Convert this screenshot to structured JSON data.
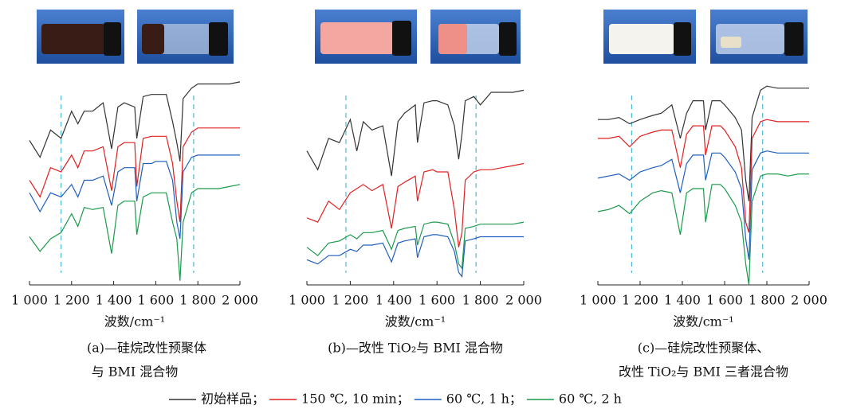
{
  "chart_data": [
    {
      "type": "line",
      "x": [
        1000,
        1050,
        1100,
        1150,
        1200,
        1230,
        1260,
        1300,
        1350,
        1390,
        1420,
        1450,
        1500,
        1510,
        1540,
        1580,
        1600,
        1650,
        1680,
        1700,
        1715,
        1730,
        1770,
        1800,
        1850,
        1900,
        1950,
        2000
      ],
      "series": [
        {
          "name": "初始样品",
          "color": "#333333",
          "values": [
            69,
            61,
            74,
            70,
            83,
            77,
            83,
            83,
            87,
            65,
            85,
            87,
            85,
            70,
            90,
            91,
            91,
            91,
            78,
            68,
            59,
            89,
            94,
            96,
            96,
            96,
            96,
            97
          ]
        },
        {
          "name": "150 ℃, 10 min",
          "color": "#e02020",
          "values": [
            50,
            42,
            56,
            54,
            62,
            56,
            64,
            64,
            66,
            45,
            66,
            68,
            68,
            47,
            70,
            71,
            71,
            71,
            58,
            40,
            30,
            66,
            73,
            75,
            75,
            75,
            75,
            75
          ]
        },
        {
          "name": "60 ℃, 1 h",
          "color": "#1f5fbf",
          "values": [
            44,
            35,
            44,
            42,
            48,
            42,
            50,
            50,
            52,
            38,
            54,
            56,
            56,
            40,
            58,
            58,
            59,
            59,
            50,
            30,
            22,
            54,
            61,
            62,
            62,
            62,
            62,
            62
          ]
        },
        {
          "name": "60 ℃, 2 h",
          "color": "#1a9a4a",
          "values": [
            23,
            16,
            22,
            25,
            34,
            28,
            37,
            36,
            37,
            15,
            38,
            40,
            40,
            24,
            42,
            44,
            44,
            44,
            30,
            22,
            2,
            30,
            44,
            46,
            46,
            46,
            47,
            48
          ]
        }
      ],
      "xlim": [
        1000,
        2000
      ],
      "ylim": [
        0,
        100
      ],
      "xticks": [
        {
          "value": 1000,
          "label": "1 000"
        },
        {
          "value": 1200,
          "label": "1 200"
        },
        {
          "value": 1400,
          "label": "1 400"
        },
        {
          "value": 1600,
          "label": "1 600"
        },
        {
          "value": 1800,
          "label": "1 800"
        },
        {
          "value": 2000,
          "label": "2 000"
        }
      ],
      "reference_lines": [
        1150,
        1780
      ],
      "xlabel": "波数/cm⁻¹",
      "caption": [
        "(a)—硅烷改性预聚体",
        "与 BMI 混合物"
      ]
    },
    {
      "type": "line",
      "x": [
        1000,
        1050,
        1100,
        1150,
        1200,
        1230,
        1260,
        1300,
        1350,
        1390,
        1420,
        1450,
        1500,
        1510,
        1540,
        1580,
        1600,
        1650,
        1680,
        1700,
        1715,
        1730,
        1770,
        1800,
        1850,
        1900,
        1950,
        2000
      ],
      "series": [
        {
          "color": "#333333",
          "values": [
            64,
            55,
            70,
            68,
            79,
            64,
            78,
            74,
            76,
            52,
            78,
            82,
            86,
            68,
            87,
            88,
            88,
            86,
            76,
            60,
            72,
            88,
            90,
            86,
            92,
            92,
            92,
            93
          ]
        },
        {
          "color": "#e02020",
          "values": [
            32,
            30,
            40,
            36,
            44,
            46,
            48,
            45,
            48,
            27,
            47,
            49,
            52,
            40,
            54,
            55,
            54,
            54,
            36,
            18,
            25,
            50,
            54,
            55,
            55,
            56,
            57,
            58
          ]
        },
        {
          "color": "#1f5fbf",
          "values": [
            12,
            10,
            14,
            14,
            17,
            16,
            19,
            19,
            20,
            11,
            20,
            21,
            22,
            13,
            23,
            24,
            24,
            23,
            16,
            6,
            4,
            21,
            22,
            23,
            23,
            23,
            23,
            23
          ]
        },
        {
          "color": "#1a9a4a",
          "values": [
            18,
            14,
            20,
            21,
            24,
            22,
            25,
            25,
            26,
            17,
            26,
            27,
            28,
            19,
            29,
            30,
            30,
            29,
            20,
            10,
            8,
            27,
            28,
            29,
            29,
            29,
            29,
            30
          ]
        }
      ],
      "xlim": [
        1000,
        2000
      ],
      "ylim": [
        0,
        100
      ],
      "xticks": [
        {
          "value": 1000,
          "label": "1 000"
        },
        {
          "value": 1200,
          "label": "1 200"
        },
        {
          "value": 1400,
          "label": "1 400"
        },
        {
          "value": 1600,
          "label": "1 600"
        },
        {
          "value": 1800,
          "label": "1 800"
        },
        {
          "value": 2000,
          "label": "2 000"
        }
      ],
      "reference_lines": [
        1180,
        1780
      ],
      "xlabel": "波数/cm⁻¹",
      "caption": [
        "(b)—改性 TiO₂与 BMI 混合物"
      ]
    },
    {
      "type": "line",
      "x": [
        1000,
        1050,
        1100,
        1150,
        1200,
        1230,
        1260,
        1300,
        1350,
        1390,
        1420,
        1450,
        1500,
        1510,
        1540,
        1580,
        1600,
        1650,
        1680,
        1700,
        1715,
        1730,
        1770,
        1800,
        1850,
        1900,
        1950,
        2000
      ],
      "series": [
        {
          "color": "#333333",
          "values": [
            79,
            79,
            80,
            77,
            79,
            80,
            81,
            82,
            86,
            70,
            82,
            88,
            88,
            74,
            88,
            88,
            86,
            80,
            74,
            50,
            40,
            80,
            93,
            95,
            94,
            94,
            94,
            94
          ]
        },
        {
          "color": "#e02020",
          "values": [
            70,
            70,
            71,
            66,
            71,
            72,
            73,
            74,
            74,
            56,
            72,
            76,
            76,
            62,
            76,
            76,
            74,
            66,
            56,
            30,
            25,
            70,
            78,
            79,
            78,
            78,
            78,
            78
          ]
        },
        {
          "color": "#1f5fbf",
          "values": [
            51,
            52,
            53,
            50,
            54,
            55,
            56,
            57,
            60,
            44,
            58,
            62,
            62,
            50,
            63,
            63,
            61,
            54,
            46,
            22,
            12,
            55,
            63,
            64,
            63,
            63,
            63,
            63
          ]
        },
        {
          "color": "#1a9a4a",
          "values": [
            35,
            36,
            38,
            34,
            40,
            42,
            44,
            45,
            44,
            24,
            44,
            46,
            46,
            30,
            48,
            48,
            46,
            38,
            30,
            10,
            0,
            40,
            52,
            53,
            53,
            52,
            53,
            53
          ]
        }
      ],
      "xlim": [
        1000,
        2000
      ],
      "ylim": [
        0,
        100
      ],
      "xticks": [
        {
          "value": 1000,
          "label": "1 000"
        },
        {
          "value": 1200,
          "label": "1 200"
        },
        {
          "value": 1400,
          "label": "1 400"
        },
        {
          "value": 1600,
          "label": "1 600"
        },
        {
          "value": 1800,
          "label": "1 800"
        },
        {
          "value": 2000,
          "label": "2 000"
        }
      ],
      "reference_lines": [
        1160,
        1780
      ],
      "xlabel": "波数/cm⁻¹",
      "caption": [
        "(c)—硅烷改性预聚体、",
        "改性 TiO₂与 BMI 三者混合物"
      ]
    }
  ],
  "legend_separator": "；"
}
